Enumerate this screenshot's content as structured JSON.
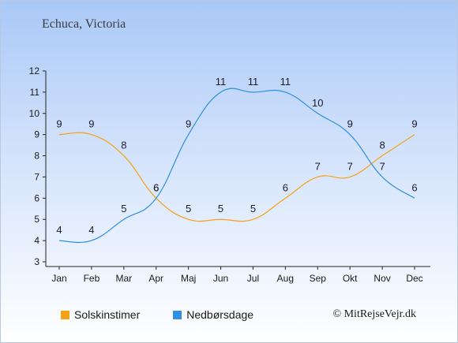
{
  "chart_data": {
    "type": "line",
    "title": "Echuca, Victoria",
    "categories": [
      "Jan",
      "Feb",
      "Mar",
      "Apr",
      "Maj",
      "Jun",
      "Jul",
      "Aug",
      "Sep",
      "Okt",
      "Nov",
      "Dec"
    ],
    "yticks": [
      "3",
      "4",
      "5",
      "6",
      "7",
      "8",
      "9",
      "10",
      "11",
      "12"
    ],
    "ylim": [
      3,
      12
    ],
    "grid": false,
    "series": [
      {
        "name": "Solskinstimer",
        "color": "#f5a214",
        "values": [
          9,
          9,
          8,
          6,
          5,
          5,
          5,
          6,
          7,
          7,
          8,
          9
        ]
      },
      {
        "name": "Nedbørsdage",
        "color": "#2f8fe0",
        "values": [
          4,
          4,
          5,
          6,
          9,
          11,
          11,
          11,
          10,
          9,
          7,
          6
        ]
      }
    ],
    "legend_position": "bottom-left"
  },
  "copyright": "© MitRejseVejr.dk"
}
